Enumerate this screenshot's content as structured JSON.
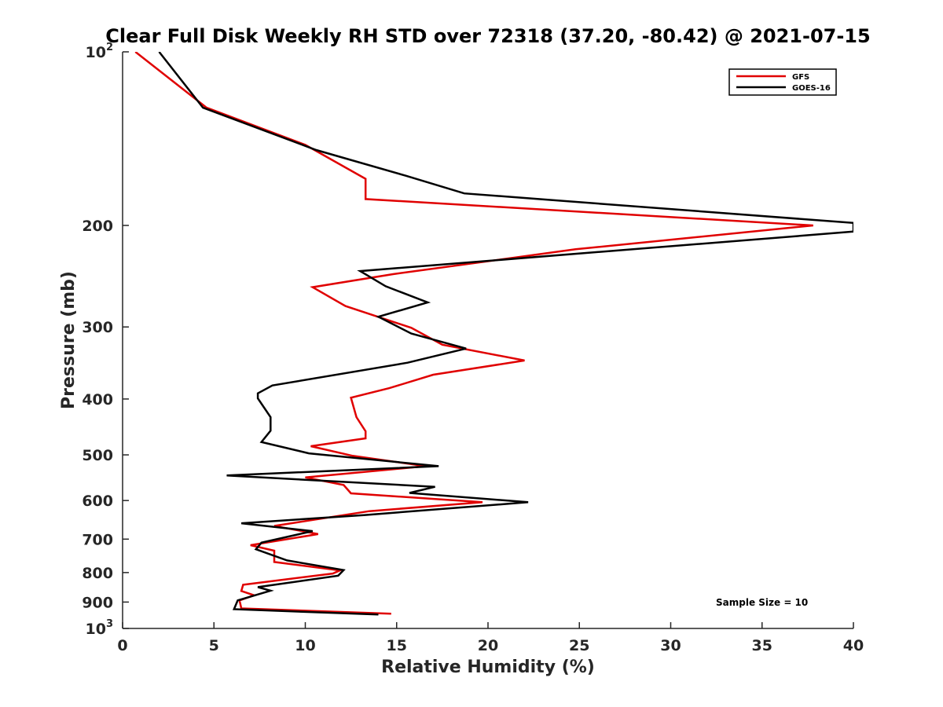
{
  "chart_data": {
    "type": "line",
    "title": "Clear Full Disk Weekly RH STD over 72318 (37.20, -80.42) @ 2021-07-15",
    "xlabel": "Relative Humidity (%)",
    "ylabel": "Pressure (mb)",
    "xlim": [
      0,
      40
    ],
    "ylim": [
      100,
      1000
    ],
    "y_scale": "log",
    "y_reversed": true,
    "grid": false,
    "x_ticks": [
      "0",
      "5",
      "10",
      "15",
      "20",
      "25",
      "30",
      "35",
      "40"
    ],
    "y_ticks": [
      {
        "value": 100,
        "base": "10",
        "exp": "2"
      },
      {
        "value": 200,
        "label": "200"
      },
      {
        "value": 300,
        "label": "300"
      },
      {
        "value": 400,
        "label": "400"
      },
      {
        "value": 500,
        "label": "500"
      },
      {
        "value": 600,
        "label": "600"
      },
      {
        "value": 700,
        "label": "700"
      },
      {
        "value": 800,
        "label": "800"
      },
      {
        "value": 900,
        "label": "900"
      },
      {
        "value": 1000,
        "base": "10",
        "exp": "3"
      }
    ],
    "legend_position": "top-right",
    "series": [
      {
        "name": "GFS",
        "color": "#e00000",
        "points": [
          [
            0.7,
            100
          ],
          [
            4.6,
            125
          ],
          [
            10.0,
            145
          ],
          [
            13.3,
            166
          ],
          [
            13.3,
            180
          ],
          [
            37.8,
            200
          ],
          [
            24.8,
            220
          ],
          [
            14.8,
            243
          ],
          [
            10.4,
            256
          ],
          [
            12.2,
            276
          ],
          [
            15.8,
            301
          ],
          [
            17.5,
            322
          ],
          [
            22.0,
            343
          ],
          [
            17.0,
            363
          ],
          [
            14.6,
            383
          ],
          [
            12.5,
            398
          ],
          [
            12.8,
            430
          ],
          [
            13.3,
            455
          ],
          [
            13.3,
            468
          ],
          [
            10.3,
            483
          ],
          [
            12.6,
            502
          ],
          [
            16.6,
            523
          ],
          [
            10.0,
            547
          ],
          [
            12.1,
            564
          ],
          [
            12.5,
            583
          ],
          [
            19.7,
            604
          ],
          [
            13.5,
            626
          ],
          [
            8.3,
            664
          ],
          [
            10.7,
            686
          ],
          [
            7.0,
            717
          ],
          [
            8.3,
            733
          ],
          [
            8.3,
            767
          ],
          [
            11.9,
            793
          ],
          [
            11.5,
            803
          ],
          [
            6.6,
            840
          ],
          [
            6.5,
            861
          ],
          [
            7.2,
            876
          ],
          [
            6.4,
            894
          ],
          [
            6.5,
            923
          ],
          [
            14.7,
            943
          ]
        ]
      },
      {
        "name": "GOES-16",
        "color": "#000000",
        "points": [
          [
            2.0,
            100
          ],
          [
            4.4,
            125
          ],
          [
            10.6,
            148
          ],
          [
            15.5,
            164
          ],
          [
            18.7,
            176
          ],
          [
            40.0,
            198
          ],
          [
            40.0,
            205
          ],
          [
            13.0,
            240
          ],
          [
            14.4,
            255
          ],
          [
            16.7,
            272
          ],
          [
            14.0,
            288
          ],
          [
            15.8,
            308
          ],
          [
            18.8,
            327
          ],
          [
            15.6,
            346
          ],
          [
            8.2,
            379
          ],
          [
            7.4,
            391
          ],
          [
            7.4,
            399
          ],
          [
            8.1,
            430
          ],
          [
            8.1,
            454
          ],
          [
            7.6,
            475
          ],
          [
            10.2,
            497
          ],
          [
            17.3,
            523
          ],
          [
            5.7,
            543
          ],
          [
            17.1,
            568
          ],
          [
            15.7,
            582
          ],
          [
            22.2,
            604
          ],
          [
            13.2,
            636
          ],
          [
            6.5,
            657
          ],
          [
            10.4,
            678
          ],
          [
            7.6,
            710
          ],
          [
            7.3,
            729
          ],
          [
            9.0,
            762
          ],
          [
            12.1,
            792
          ],
          [
            11.8,
            810
          ],
          [
            7.4,
            848
          ],
          [
            8.1,
            860
          ],
          [
            7.3,
            875
          ],
          [
            6.3,
            894
          ],
          [
            6.1,
            926
          ],
          [
            14.0,
            946
          ]
        ]
      }
    ],
    "annotation": "Sample Size = 10"
  }
}
